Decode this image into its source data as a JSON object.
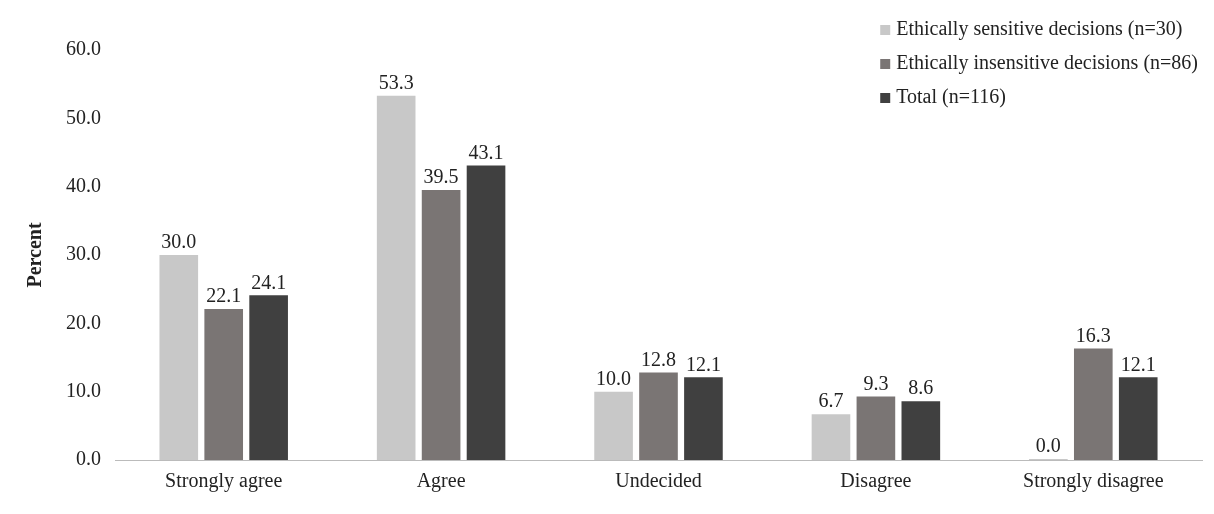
{
  "chart_data": {
    "type": "bar",
    "ylabel": "Percent",
    "categories": [
      "Strongly agree",
      "Agree",
      "Undecided",
      "Disagree",
      "Strongly disagree"
    ],
    "series": [
      {
        "name": "Ethically sensitive decisions (n=30)",
        "color": "#c8c8c8",
        "values": [
          30.0,
          53.3,
          10.0,
          6.7,
          0.0
        ],
        "value_labels": [
          "30.0",
          "53.3",
          "10.0",
          "6.7",
          "0.0"
        ]
      },
      {
        "name": "Ethically insensitive decisions (n=86)",
        "color": "#7a7574",
        "values": [
          22.1,
          39.5,
          12.8,
          9.3,
          16.3
        ],
        "value_labels": [
          "22.1",
          "39.5",
          "12.8",
          "9.3",
          "16.3"
        ]
      },
      {
        "name": "Total (n=116)",
        "color": "#404040",
        "values": [
          24.1,
          43.1,
          12.1,
          8.6,
          12.1
        ],
        "value_labels": [
          "24.1",
          "43.1",
          "12.1",
          "8.6",
          "12.1"
        ]
      }
    ],
    "ylim": [
      0,
      60
    ],
    "yticks": [
      {
        "value": 0,
        "label": "0.0"
      },
      {
        "value": 10,
        "label": "10.0"
      },
      {
        "value": 20,
        "label": "20.0"
      },
      {
        "value": 30,
        "label": "30.0"
      },
      {
        "value": 40,
        "label": "40.0"
      },
      {
        "value": 50,
        "label": "50.0"
      },
      {
        "value": 60,
        "label": "60.0"
      }
    ],
    "grid": false,
    "legend": "top right"
  }
}
